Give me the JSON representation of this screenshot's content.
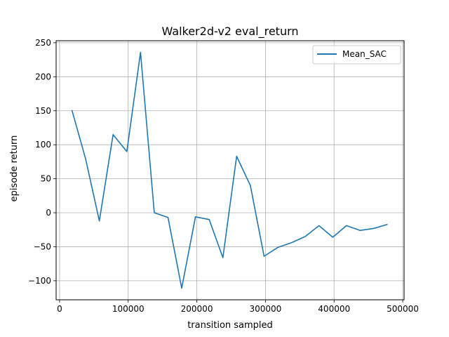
{
  "chart_data": {
    "type": "line",
    "title": "Walker2d-v2 eval_return",
    "xlabel": "transition sampled",
    "ylabel": "episode return",
    "xlim": [
      -5000,
      502000
    ],
    "ylim": [
      -128,
      253
    ],
    "x_ticks": [
      0,
      100000,
      200000,
      300000,
      400000,
      500000
    ],
    "x_tick_labels": [
      "0",
      "100000",
      "200000",
      "300000",
      "400000",
      "500000"
    ],
    "y_ticks": [
      -100,
      -50,
      0,
      50,
      100,
      150,
      200,
      250
    ],
    "y_tick_labels": [
      "−100",
      "−50",
      "0",
      "50",
      "100",
      "150",
      "200",
      "250"
    ],
    "grid": true,
    "legend": "top-right",
    "series": [
      {
        "name": "Mean_SAC",
        "color": "#1f77b4",
        "x": [
          18000,
          38000,
          58000,
          78000,
          98000,
          118000,
          138000,
          158000,
          178000,
          198000,
          218000,
          238000,
          258000,
          278000,
          298000,
          318000,
          338000,
          358000,
          378000,
          398000,
          418000,
          438000,
          458000,
          478000
        ],
        "y": [
          151,
          79,
          -12,
          115,
          90,
          236,
          0,
          -7,
          -111,
          -6,
          -10,
          -66,
          83,
          40,
          -64,
          -51,
          -44,
          -35,
          -19,
          -36,
          -19,
          -26,
          -23,
          -17
        ]
      }
    ]
  }
}
